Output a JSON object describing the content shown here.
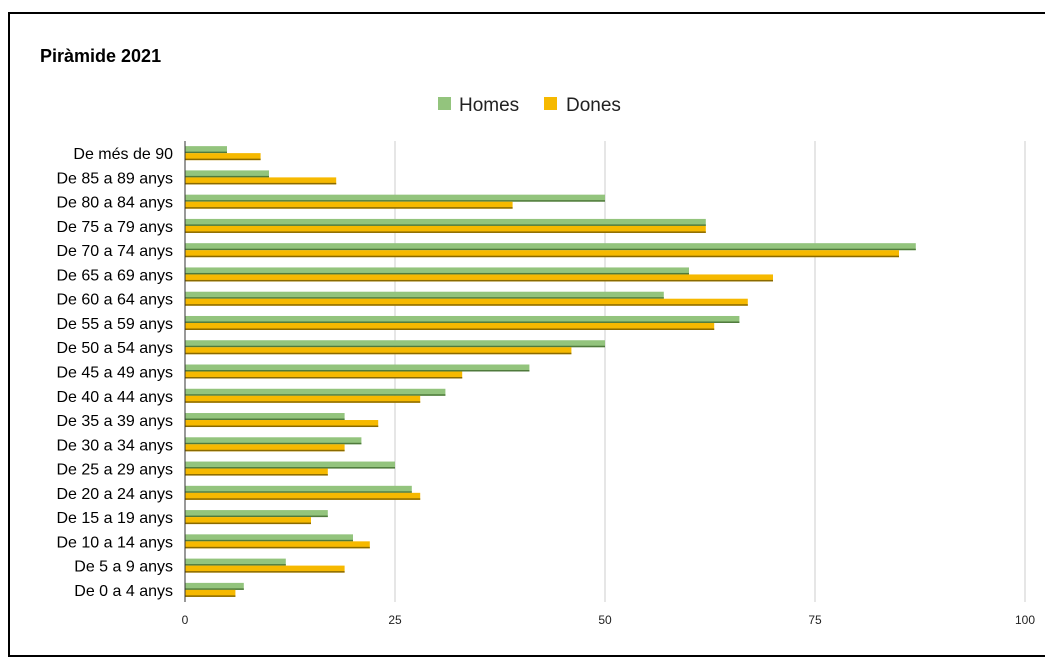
{
  "chart_data": {
    "type": "bar",
    "orientation": "horizontal",
    "title": "Piràmide 2021",
    "categories": [
      "De més de 90",
      "De 85 a 89 anys",
      "De 80 a 84 anys",
      "De 75 a 79 anys",
      "De 70 a 74 anys",
      "De 65 a 69 anys",
      "De 60 a 64 anys",
      "De 55 a 59 anys",
      "De 50 a 54 anys",
      "De 45 a 49 anys",
      "De 40 a 44 anys",
      "De 35 a 39 anys",
      "De 30 a 34 anys",
      "De 25 a 29 anys",
      "De 20 a 24 anys",
      "De 15 a 19 anys",
      "De 10 a 14 anys",
      "De 5 a 9 anys",
      "De 0 a 4 anys"
    ],
    "series": [
      {
        "name": "Homes",
        "color": "#93c47d",
        "values": [
          5,
          10,
          50,
          62,
          87,
          60,
          57,
          66,
          50,
          41,
          31,
          19,
          21,
          25,
          27,
          17,
          20,
          12,
          7
        ]
      },
      {
        "name": "Dones",
        "color": "#f6b900",
        "values": [
          9,
          18,
          39,
          62,
          85,
          70,
          67,
          63,
          46,
          33,
          28,
          23,
          19,
          17,
          28,
          15,
          22,
          19,
          6
        ]
      }
    ],
    "xlim": [
      0,
      100
    ],
    "xticks": [
      0,
      25,
      50,
      75,
      100
    ],
    "xlabel": "",
    "ylabel": "",
    "grid": "vertical",
    "legend": "top-center"
  }
}
